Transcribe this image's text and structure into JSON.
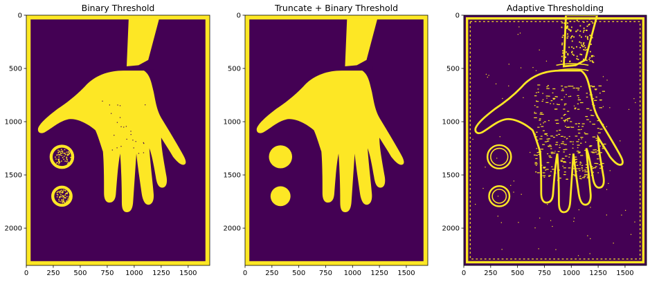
{
  "figure": {
    "colors": {
      "background": "#440154",
      "foreground": "#fde725",
      "axis": "#000000"
    }
  },
  "chart_data": [
    {
      "type": "heatmap",
      "title": "Binary Threshold",
      "xlim": [
        0,
        1700
      ],
      "ylim": [
        2350,
        0
      ],
      "xticks": [
        "0",
        "250",
        "500",
        "750",
        "1000",
        "1250",
        "1500"
      ],
      "yticks": [
        "0",
        "500",
        "1000",
        "1500",
        "2000"
      ],
      "image": "binary-mask",
      "colormap": "viridis",
      "value_range": [
        0,
        1
      ]
    },
    {
      "type": "heatmap",
      "title": "Truncate + Binary Threshold",
      "xlim": [
        0,
        1700
      ],
      "ylim": [
        2350,
        0
      ],
      "xticks": [
        "0",
        "250",
        "500",
        "750",
        "1000",
        "1250",
        "1500"
      ],
      "yticks": [
        "0",
        "500",
        "1000",
        "1500",
        "2000"
      ],
      "image": "binary-mask",
      "colormap": "viridis",
      "value_range": [
        0,
        1
      ]
    },
    {
      "type": "heatmap",
      "title": "Adaptive Thresholding",
      "xlim": [
        0,
        1700
      ],
      "ylim": [
        2350,
        0
      ],
      "xticks": [
        "0",
        "250",
        "500",
        "750",
        "1000",
        "1250",
        "1500"
      ],
      "yticks": [
        "0",
        "500",
        "1000",
        "1500",
        "2000"
      ],
      "image": "edge-mask",
      "colormap": "viridis",
      "value_range": [
        0,
        1
      ]
    }
  ]
}
